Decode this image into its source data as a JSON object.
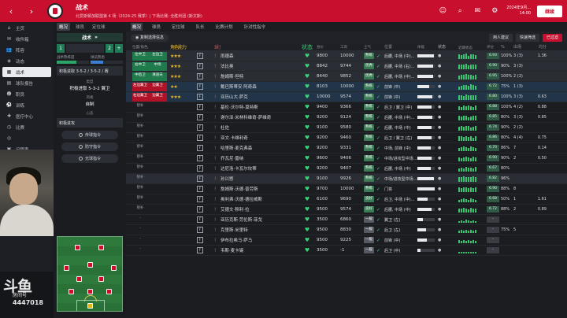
{
  "topbar": {
    "title": "战术",
    "subtitle": "北爱斯顿加联盟第 4 场（2024-25 赛季）| 下场比赛: 全胜利团 (斯文斯)",
    "date_line1": "2024年9月...",
    "date_line2": "14:00",
    "continue_label": "继续",
    "colors": {
      "brand": "#c8102e"
    }
  },
  "sidebar": {
    "items": [
      {
        "label": "主页",
        "icon": "home-icon",
        "glyph": "⌂"
      },
      {
        "label": "收件箱",
        "icon": "inbox-icon",
        "glyph": "✉"
      },
      {
        "label": "阵容",
        "icon": "squad-icon",
        "glyph": "👥"
      },
      {
        "label": "动态",
        "icon": "dynamics-icon",
        "glyph": "◈"
      },
      {
        "label": "战术",
        "icon": "tactics-icon",
        "glyph": "▦",
        "active": true
      },
      {
        "label": "球队报告",
        "icon": "report-icon",
        "glyph": "▤"
      },
      {
        "label": "职员",
        "icon": "staff-icon",
        "glyph": "☻"
      },
      {
        "label": "训练",
        "icon": "training-icon",
        "glyph": "⚽"
      },
      {
        "label": "医疗中心",
        "icon": "medical-icon",
        "glyph": "✚"
      },
      {
        "label": "比赛",
        "icon": "matches-icon",
        "glyph": "◷"
      },
      {
        "label": "",
        "icon": "scouting-icon",
        "glyph": "◎"
      },
      {
        "label": "日程表",
        "icon": "calendar-icon",
        "glyph": "▣"
      }
    ]
  },
  "stream": {
    "logo": "斗鱼",
    "room_label": "房间号",
    "room_number": "4447018"
  },
  "tactics_panel": {
    "tabs": [
      "概况",
      "球员",
      "定位球",
      "队长",
      "比赛计划",
      "针对性指令"
    ],
    "active_tab": "概况",
    "header": "战术",
    "form_nums": [
      "1",
      "2",
      "3"
    ],
    "bar1_label": "战术熟练度",
    "bar1_value": 0.6,
    "bar2_label": "球员熟悉",
    "bar2_value": 0.4,
    "formation": "积极进取 3-5-2 / 3-5-2 / 赛",
    "mentality_label": "风格",
    "mentality_value": "积极进取 5-3-2 翼卫",
    "style_label": "类型",
    "style_value": "自制",
    "instr_label": "心态",
    "instr_value": "积极进攻",
    "btn1": "传球指令",
    "btn2": "防守指令",
    "btn3": "无球指令"
  },
  "main": {
    "tabs": [
      "概况",
      "球员",
      "定位球",
      "队长",
      "比赛计划",
      "针对性指令"
    ],
    "active_tab": "概况",
    "view_label": "复制选择信息",
    "btn_suggest": "用人建议",
    "btn_quick": "快速筛选",
    "btn_filter": "已过滤"
  },
  "table": {
    "headers": [
      "位置/角色/职责",
      "",
      "角色能力",
      "",
      "球员",
      "",
      "状态",
      "身价",
      "工资",
      "士气",
      "",
      "位置",
      "体能",
      "状态",
      "近期状态",
      "评分",
      "%",
      "出场",
      "均分"
    ],
    "rows": [
      {
        "pos": "左中卫",
        "role": "左边卫",
        "stars": "★★★",
        "name": "雨德森",
        "n1": "9800",
        "n2": "10000",
        "tag": "熟练",
        "posn": "后腰, 中场 (中)…",
        "fit": 0.95,
        "form": [
          8,
          6,
          7,
          9,
          5,
          7,
          8,
          6
        ],
        "rt": "6.93",
        "pct": "100%",
        "gp": "3 (3)",
        "av": "1.36",
        "cls": "hl"
      },
      {
        "pos": "右中卫",
        "role": "中场",
        "stars": "★★★",
        "name": "法比奥",
        "n1": "8842",
        "n2": "9744",
        "tag": "优秀",
        "posn": "后腰, 中场 (右)…",
        "fit": 0.9,
        "form": [
          7,
          7,
          8,
          9,
          6,
          7,
          8,
          8
        ],
        "rt": "6.90",
        "pct": "90%",
        "gp": "3 (3)",
        "av": "",
        "cls": "hl"
      },
      {
        "pos": "中后卫",
        "role": "清道夫",
        "stars": "★★★",
        "name": "詹姆斯·坦特",
        "n1": "8440",
        "n2": "9852",
        "tag": "优秀",
        "posn": "后腰, 中场 (中)…",
        "fit": 0.92,
        "form": [
          6,
          8,
          7,
          9,
          8,
          7,
          6,
          8
        ],
        "rt": "6.95",
        "pct": "100%",
        "gp": "2 (2)",
        "av": "",
        "cls": "hl"
      },
      {
        "pos": "左边翼卫",
        "role": "边翼卫",
        "stars": "★★",
        "name": "戴巴斯蒂安·阿奇森",
        "n1": "8103",
        "n2": "10000",
        "tag": "熟练",
        "posn": "前锋 (中)",
        "fit": 0.7,
        "form": [
          5,
          6,
          8,
          7,
          6,
          9,
          7,
          6
        ],
        "rt": "6.72",
        "pct": "75%",
        "gp": "1 (3)",
        "av": "",
        "cls": "sel"
      },
      {
        "pos": "右边翼卫",
        "role": "边翼卫",
        "stars": "★★★",
        "name": "亚历山大·萨克",
        "n1": "10000",
        "n2": "9574",
        "tag": "熟练",
        "posn": "前锋 (中)",
        "fit": 0.88,
        "form": [
          7,
          8,
          6,
          9,
          8,
          7,
          7,
          8
        ],
        "rt": "6.80",
        "pct": "100%",
        "gp": "3 (3)",
        "av": "0.63",
        "cls": "sel"
      },
      {
        "pos": "替补",
        "role": "",
        "stars": "",
        "name": "基伦·沃尔特-莫特斯",
        "n1": "9400",
        "n2": "9366",
        "tag": "熟练",
        "posn": "后卫 / 翼卫 (中)",
        "fit": 0.8,
        "form": [
          6,
          5,
          7,
          6,
          8,
          6,
          5,
          7
        ],
        "rt": "6.88",
        "pct": "100%",
        "gp": "4 (2)",
        "av": "0.88",
        "cls": ""
      },
      {
        "pos": "替补",
        "role": "",
        "stars": "",
        "name": "谢尔泽·米林科维奇-萨维奇",
        "n1": "9200",
        "n2": "9124",
        "tag": "熟练",
        "posn": "后腰, 中场 (中)…",
        "fit": 0.85,
        "form": [
          7,
          6,
          8,
          7,
          5,
          6,
          8,
          7
        ],
        "rt": "6.85",
        "pct": "80%",
        "gp": "3 (3)",
        "av": "0.85",
        "cls": ""
      },
      {
        "pos": "替补",
        "role": "",
        "stars": "",
        "name": "杜佐",
        "n1": "9100",
        "n2": "9580",
        "tag": "熟练",
        "posn": "后腰, 中场 (中)",
        "fit": 0.8,
        "form": [
          6,
          7,
          6,
          8,
          7,
          5,
          6,
          7
        ],
        "rt": "6.74",
        "pct": "90%",
        "gp": "2 (2)",
        "av": "",
        "cls": ""
      },
      {
        "pos": "替补",
        "role": "",
        "stars": "",
        "name": "亚文·卡维利奇",
        "n1": "9200",
        "n2": "9460",
        "tag": "熟练",
        "posn": "后卫 / 翼卫 (左)",
        "fit": 0.82,
        "form": [
          7,
          7,
          6,
          8,
          6,
          7,
          5,
          8
        ],
        "rt": "6.86",
        "pct": "80%",
        "gp": "4 (4)",
        "av": "0.75",
        "cls": ""
      },
      {
        "pos": "替补",
        "role": "",
        "stars": "",
        "name": "哈里斯·麦克弗森",
        "n1": "9200",
        "n2": "9331",
        "tag": "熟练",
        "posn": "中场, 前锋 (中)",
        "fit": 0.78,
        "form": [
          5,
          6,
          7,
          6,
          5,
          7,
          6,
          5
        ],
        "rt": "6.70",
        "pct": "86%",
        "gp": "7",
        "av": "0.14",
        "cls": ""
      },
      {
        "pos": "替补",
        "role": "",
        "stars": "",
        "name": "乔瓦尼·雷纳",
        "n1": "9600",
        "n2": "9406",
        "tag": "熟练",
        "posn": "中场/进攻型中场…",
        "fit": 0.8,
        "form": [
          6,
          5,
          6,
          7,
          6,
          5,
          7,
          6
        ],
        "rt": "6.90",
        "pct": "90%",
        "gp": "2",
        "av": "0.50",
        "cls": ""
      },
      {
        "pos": "替补",
        "role": "",
        "stars": "",
        "name": "达尼洛·卡瓦尔坎蒂",
        "n1": "9200",
        "n2": "9407",
        "tag": "熟练",
        "posn": "后腰, 中场 (中)",
        "fit": 0.76,
        "form": [
          5,
          6,
          5,
          7,
          6,
          6,
          5,
          7
        ],
        "rt": "6.67",
        "pct": "80%",
        "gp": "",
        "av": "",
        "cls": ""
      },
      {
        "pos": "替补",
        "role": "",
        "stars": "",
        "name": "孙兴慜",
        "n1": "9100",
        "n2": "9926",
        "tag": "熟练",
        "posn": "中场/进攻型中场…",
        "fit": 0.95,
        "form": [
          8,
          7,
          9,
          8,
          7,
          8,
          9,
          8
        ],
        "rt": "6.82",
        "pct": "96%",
        "gp": "",
        "av": "",
        "cls": "hl"
      },
      {
        "pos": "替补",
        "role": "",
        "stars": "",
        "name": "詹姆斯·沃德·普劳斯",
        "n1": "9700",
        "n2": "10000",
        "tag": "熟练",
        "posn": "门将",
        "fit": 0.98,
        "form": [
          7,
          6,
          7,
          8,
          6,
          7,
          6,
          7
        ],
        "rt": "6.90",
        "pct": "88%",
        "gp": "8",
        "av": "",
        "cls": ""
      },
      {
        "pos": "替补",
        "role": "",
        "stars": "",
        "name": "奥利弗·沃德·德拉威斯",
        "n1": "6100",
        "n2": "9690",
        "tag": "良好",
        "posn": "后卫, 中场 (中)…",
        "fit": 0.6,
        "form": [
          4,
          5,
          6,
          5,
          4,
          6,
          5,
          4
        ],
        "rt": "6.68",
        "pct": "50%",
        "gp": "1",
        "av": "1.61",
        "cls": ""
      },
      {
        "pos": "替补",
        "role": "",
        "stars": "",
        "name": "艾德文·穆利·拉",
        "n1": "9500",
        "n2": "9574",
        "tag": "良好",
        "posn": "后腰, 中场 (中)",
        "fit": 0.8,
        "form": [
          6,
          6,
          7,
          6,
          5,
          7,
          6,
          6
        ],
        "rt": "6.72",
        "pct": "88%",
        "gp": "2",
        "av": "0.89",
        "cls": ""
      },
      {
        "pos": "-",
        "role": "",
        "stars": "",
        "name": "亚历克斯·劳伦斯·菲戈",
        "n1": "3500",
        "n2": "6860",
        "tag": "一般",
        "posn": "翼卫 (左)",
        "fit": 0.3,
        "form": [
          3,
          4,
          3,
          5,
          4,
          3,
          4,
          3
        ],
        "rt": "-",
        "pct": "",
        "gp": "",
        "av": "",
        "cls": ""
      },
      {
        "pos": "-",
        "role": "",
        "stars": "",
        "name": "克里斯·米里特",
        "n1": "9500",
        "n2": "8830",
        "tag": "一般",
        "posn": "后卫 (左)",
        "fit": 0.5,
        "form": [
          4,
          5,
          4,
          5,
          4,
          5,
          4,
          5
        ],
        "rt": "-",
        "pct": "75%",
        "gp": "5",
        "av": "",
        "cls": ""
      },
      {
        "pos": "-",
        "role": "",
        "stars": "",
        "name": "伊布拉希马·萨马",
        "n1": "9500",
        "n2": "9225",
        "tag": "一般",
        "posn": "前锋 (中)",
        "fit": 0.55,
        "form": [
          5,
          4,
          5,
          4,
          5,
          4,
          5,
          4
        ],
        "rt": "-",
        "pct": "",
        "gp": "",
        "av": "",
        "cls": ""
      },
      {
        "pos": "-",
        "role": "",
        "stars": "",
        "name": "韦斯·麦卡锡",
        "n1": "3500",
        "n2": "-1",
        "tag": "一般",
        "posn": "后卫 (中)",
        "fit": 0.2,
        "form": [
          2,
          3,
          2,
          3,
          2,
          3,
          2,
          3
        ],
        "rt": "-",
        "pct": "",
        "gp": "",
        "av": "",
        "cls": ""
      }
    ]
  }
}
